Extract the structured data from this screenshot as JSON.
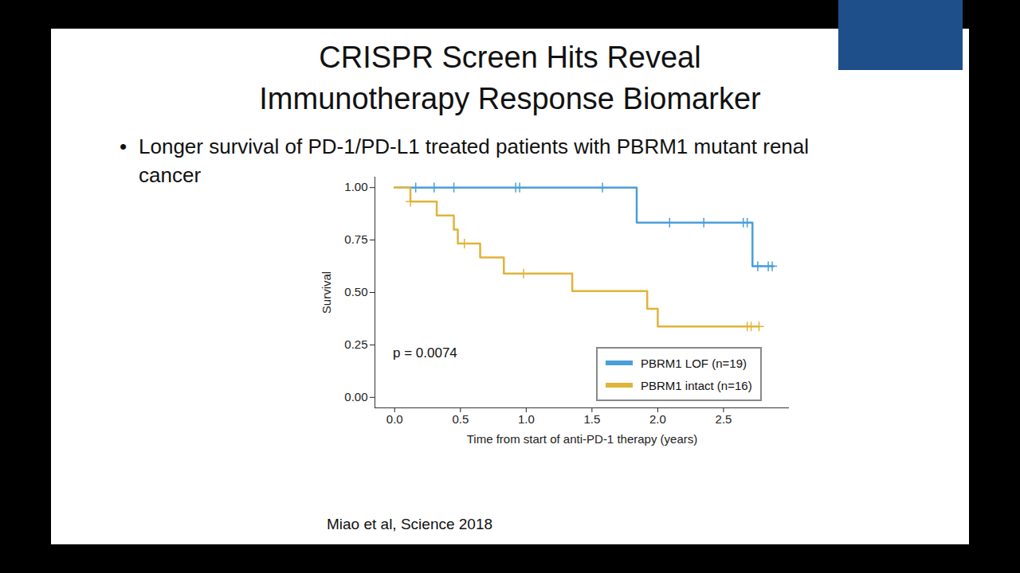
{
  "chart_data": {
    "type": "line",
    "title": "CRISPR Screen Hits Reveal\nImmunotherapy Response Biomarker",
    "subtitle": "Longer survival of PD-1/PD-L1 treated patients with PBRM1 mutant renal cancer",
    "annotations": [
      "p = 0.0074",
      "Miao et al, Science 2018"
    ],
    "x_label": "Time from start of anti-PD-1 therapy (years)",
    "y_label": "Survival",
    "line_style": "step",
    "marker": "plus",
    "legend": "bottom-right",
    "grid": false,
    "xlim": [
      -0.15,
      3.0
    ],
    "ylim": [
      -0.05,
      1.05
    ],
    "xticks": [
      {
        "value": 0,
        "label": "0.0"
      },
      {
        "value": 0.5,
        "label": "0.5"
      },
      {
        "value": 1,
        "label": "1.0"
      },
      {
        "value": 1.5,
        "label": "1.5"
      },
      {
        "value": 2,
        "label": "2.0"
      },
      {
        "value": 2.5,
        "label": "2.5"
      }
    ],
    "yticks": [
      {
        "value": 0,
        "label": "0.00"
      },
      {
        "value": 0.25,
        "label": "0.25"
      },
      {
        "value": 0.5,
        "label": "0.50"
      },
      {
        "value": 0.75,
        "label": "0.75"
      },
      {
        "value": 1,
        "label": "1.00"
      }
    ],
    "series": [
      {
        "name": "PBRM1 LOF (n=19)",
        "color": "#4a9fd8",
        "x": [
          0,
          1.84,
          2.72,
          2.88
        ],
        "values": [
          1.0,
          0.833,
          0.625,
          0.625
        ],
        "censored_x": [
          0.16,
          0.3,
          0.45,
          0.92,
          0.95,
          1.58,
          2.09,
          2.35,
          2.65,
          2.68,
          2.76,
          2.84,
          2.87
        ],
        "censored_values": [
          1.0,
          1.0,
          1.0,
          1.0,
          1.0,
          1.0,
          0.833,
          0.833,
          0.833,
          0.833,
          0.625,
          0.625,
          0.625
        ]
      },
      {
        "name": "PBRM1 intact (n=16)",
        "color": "#e0b43a",
        "x": [
          0,
          0.12,
          0.32,
          0.45,
          0.48,
          0.65,
          0.83,
          1.35,
          1.92,
          2.0,
          2.77
        ],
        "values": [
          1.0,
          0.933,
          0.867,
          0.8,
          0.733,
          0.667,
          0.59,
          0.507,
          0.422,
          0.338,
          0.338
        ],
        "censored_x": [
          0.12,
          0.53,
          0.98,
          2.68,
          2.71,
          2.77
        ],
        "censored_values": [
          0.933,
          0.733,
          0.59,
          0.338,
          0.338,
          0.338
        ]
      }
    ]
  }
}
